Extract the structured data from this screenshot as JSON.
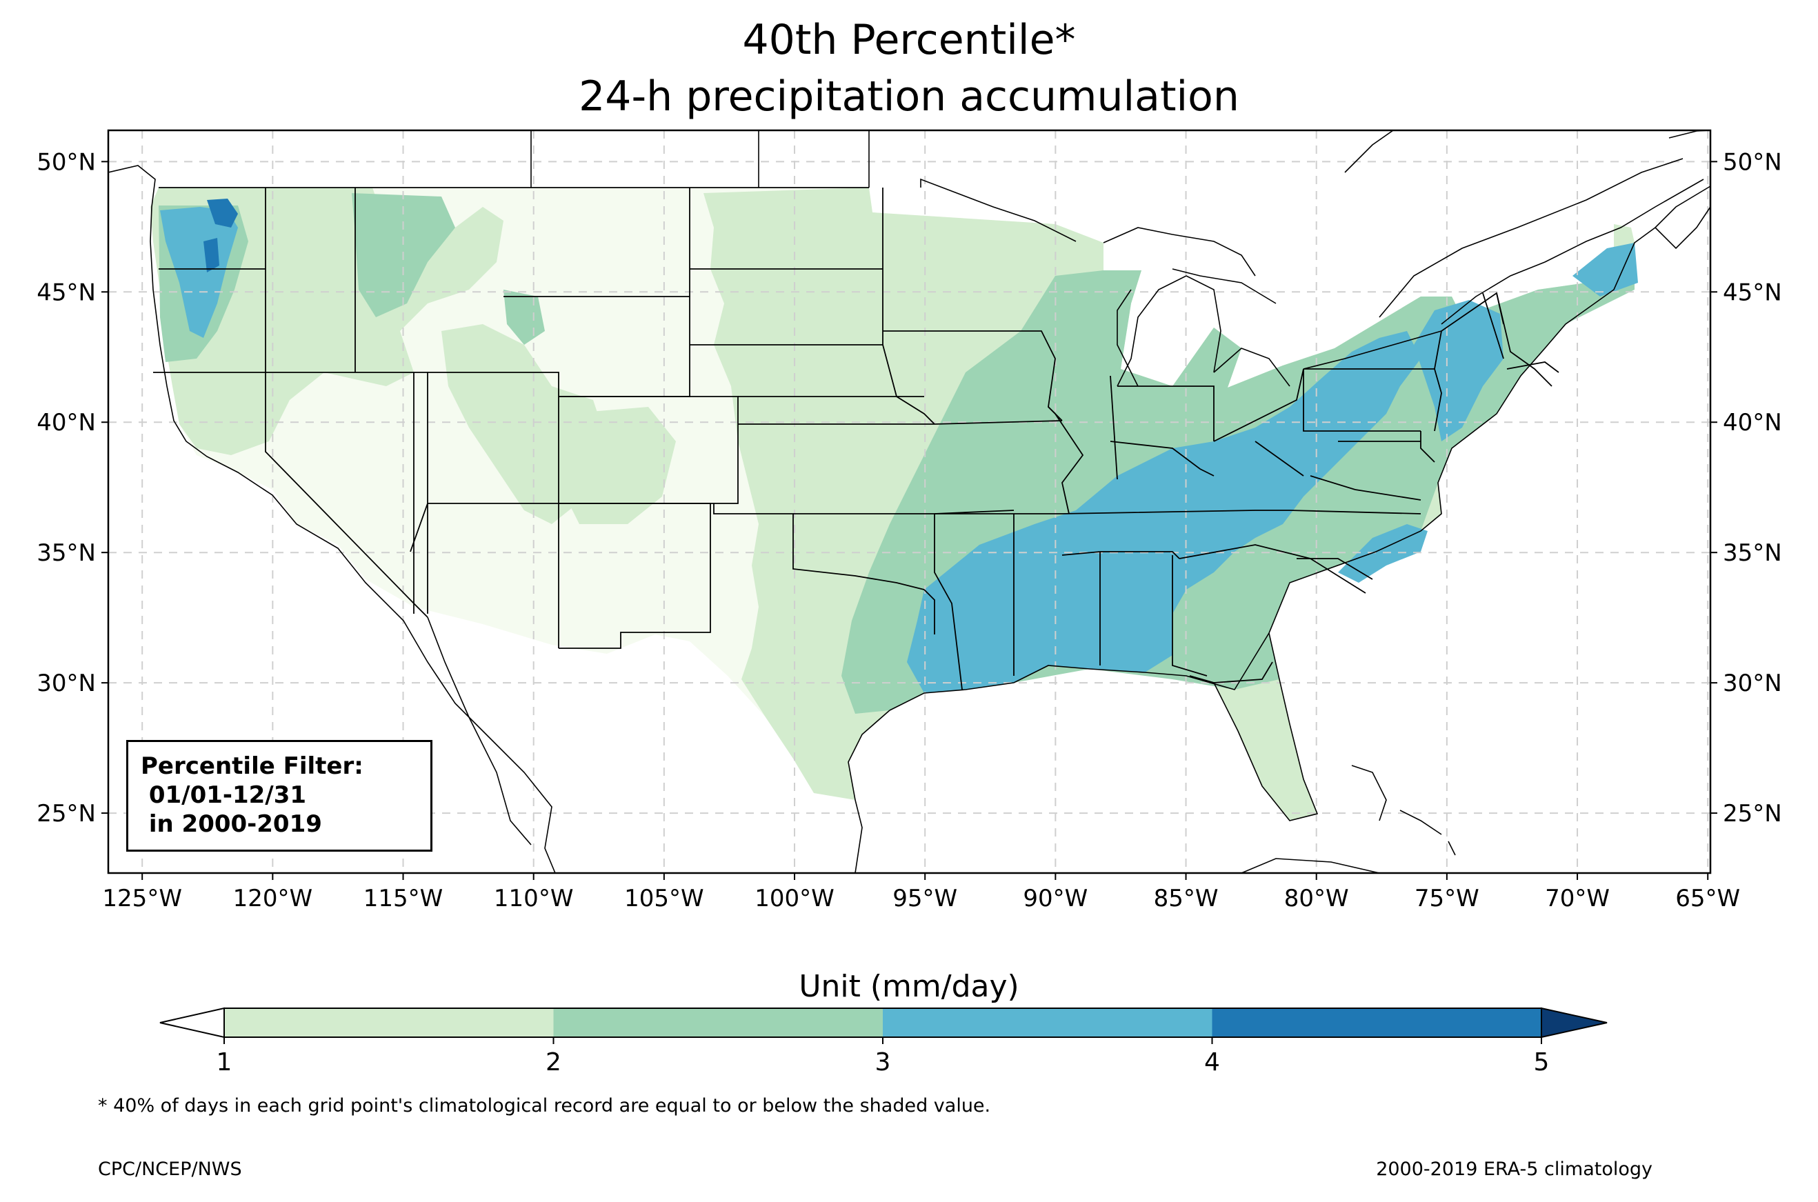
{
  "title": "40th Percentile*",
  "subtitle": "24-h precipitation accumulation",
  "colors": {
    "lt1": "#f5fbf0",
    "c1": "#d3ecce",
    "c2": "#9dd4b4",
    "c3": "#5ab6d2",
    "c4": "#1f78b4",
    "c5": "#0b3b72",
    "grid": "#cfcfcf"
  },
  "map": {
    "lon_range": [
      -126.3,
      -64.9
    ],
    "lat_range": [
      22.7,
      51.2
    ],
    "lon_ticks": [
      {
        "value": -125,
        "label": "125°W"
      },
      {
        "value": -120,
        "label": "120°W"
      },
      {
        "value": -115,
        "label": "115°W"
      },
      {
        "value": -110,
        "label": "110°W"
      },
      {
        "value": -105,
        "label": "105°W"
      },
      {
        "value": -100,
        "label": "100°W"
      },
      {
        "value": -95,
        "label": "95°W"
      },
      {
        "value": -90,
        "label": "90°W"
      },
      {
        "value": -85,
        "label": "85°W"
      },
      {
        "value": -80,
        "label": "80°W"
      },
      {
        "value": -75,
        "label": "75°W"
      },
      {
        "value": -70,
        "label": "70°W"
      },
      {
        "value": -65,
        "label": "65°W"
      }
    ],
    "lat_ticks": [
      {
        "value": 25,
        "label": "25°N"
      },
      {
        "value": 30,
        "label": "30°N"
      },
      {
        "value": 35,
        "label": "35°N"
      },
      {
        "value": 40,
        "label": "40°N"
      },
      {
        "value": 45,
        "label": "45°N"
      },
      {
        "value": 50,
        "label": "50°N"
      }
    ],
    "grid": true
  },
  "filter_box": {
    "lines": [
      "Percentile Filter:",
      " 01/01-12/31",
      " in 2000-2019"
    ]
  },
  "colorbar": {
    "title": "Unit (mm/day)",
    "ticks": [
      "1",
      "2",
      "3",
      "4",
      "5"
    ],
    "extend": "both"
  },
  "footnote": "* 40% of days in each grid point's climatological record are equal to or below the shaded value.",
  "credit_left": "CPC/NCEP/NWS",
  "credit_right": "2000-2019 ERA-5 climatology"
}
